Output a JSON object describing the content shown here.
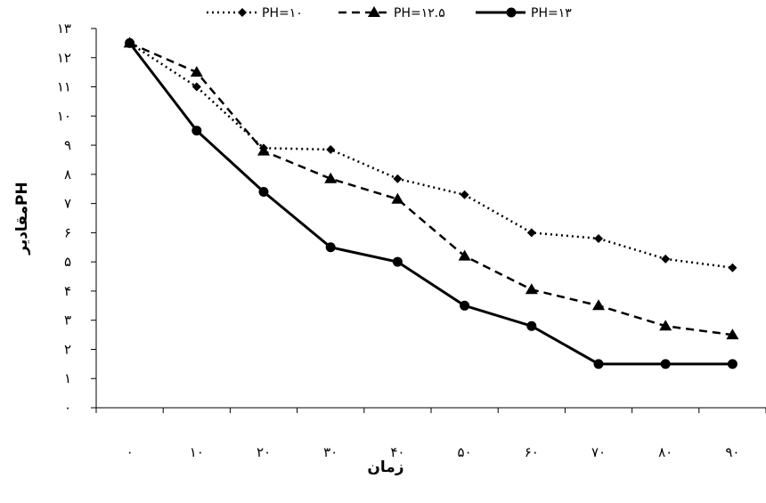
{
  "chart_data": {
    "type": "line",
    "title": "",
    "xlabel": "زمان",
    "ylabel": "مقادیرPH",
    "categories": [
      "۰",
      "۱۰",
      "۲۰",
      "۳۰",
      "۴۰",
      "۵۰",
      "۶۰",
      "۷۰",
      "۸۰",
      "۹۰"
    ],
    "x": [
      0,
      10,
      20,
      30,
      40,
      50,
      60,
      70,
      80,
      90
    ],
    "ylim": [
      0,
      13
    ],
    "y_tick_labels": [
      "۰",
      "۱",
      "۲",
      "۳",
      "۴",
      "۵",
      "۶",
      "۷",
      "۸",
      "۹",
      "۱۰",
      "۱۱",
      "۱۲",
      "۱۳"
    ],
    "grid": false,
    "legend_position": "top",
    "series": [
      {
        "name": "PH=۱۰",
        "marker": "diamond",
        "dash": "dotted",
        "color": "#000000",
        "values": [
          12.5,
          11.0,
          8.9,
          8.85,
          7.85,
          7.3,
          6.0,
          5.8,
          5.1,
          4.8
        ]
      },
      {
        "name": "PH=۱۲.۵",
        "marker": "triangle",
        "dash": "dashed",
        "color": "#000000",
        "values": [
          12.5,
          11.5,
          8.8,
          7.85,
          7.15,
          5.2,
          4.05,
          3.5,
          2.8,
          2.5
        ]
      },
      {
        "name": "PH=۱۳",
        "marker": "circle",
        "dash": "solid",
        "color": "#000000",
        "values": [
          12.5,
          9.5,
          7.4,
          5.5,
          5.0,
          3.5,
          2.8,
          1.5,
          1.5,
          1.5
        ]
      }
    ]
  }
}
